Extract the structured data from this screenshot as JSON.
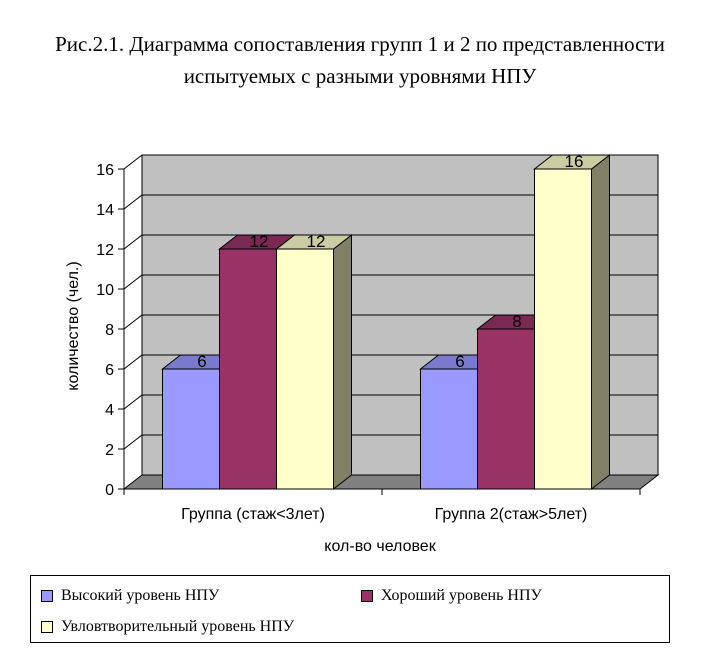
{
  "chart_data": {
    "type": "bar",
    "title": "Рис.2.1. Диаграмма сопоставления групп 1 и 2 по представленности испытуемых с разными уровнями НПУ",
    "xlabel": "кол-во человек",
    "ylabel": "количество (чел.)",
    "categories": [
      "Группа (стаж<3лет)",
      "Группа 2(стаж>5лет)"
    ],
    "series": [
      {
        "name": "Высокий уровень НПУ",
        "values": [
          6,
          6
        ],
        "color": "#9999ff"
      },
      {
        "name": "Хороший уровень НПУ",
        "values": [
          12,
          8
        ],
        "color": "#993366"
      },
      {
        "name": "Увловтворительный уровень НПУ",
        "values": [
          12,
          16
        ],
        "color": "#ffffcc"
      }
    ],
    "ylim": [
      0,
      16
    ],
    "yticks": [
      "0",
      "2",
      "4",
      "6",
      "8",
      "10",
      "12",
      "14",
      "16"
    ],
    "grid": true,
    "legend_position": "bottom",
    "wall_color": "#c0c0c0"
  }
}
